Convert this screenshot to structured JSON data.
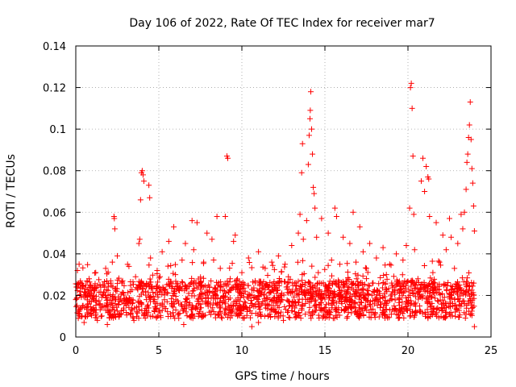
{
  "chart_data": {
    "type": "scatter",
    "title": "Day 106 of 2022, Rate Of TEC Index for receiver mar7",
    "xlabel": "GPS time / hours",
    "ylabel": "ROTI / TECUs",
    "xlim": [
      0,
      25
    ],
    "ylim": [
      0,
      0.14
    ],
    "xticks": [
      0,
      5,
      10,
      15,
      20,
      25
    ],
    "xtick_labels": [
      "0",
      "5",
      "10",
      "15",
      "20",
      "25"
    ],
    "yticks": [
      0,
      0.02,
      0.04,
      0.06,
      0.08,
      0.1,
      0.12,
      0.14
    ],
    "ytick_labels": [
      "0",
      "0.02",
      "0.04",
      "0.06",
      "0.08",
      "0.1",
      "0.12",
      "0.14"
    ],
    "grid": true,
    "marker": "+",
    "color": "#ff0000",
    "series": [
      {
        "name": "ROTI",
        "points": [
          [
            0.0,
            0.018
          ],
          [
            0.1,
            0.032
          ],
          [
            0.15,
            0.009
          ],
          [
            0.2,
            0.035
          ],
          [
            0.3,
            0.014
          ],
          [
            0.4,
            0.025
          ],
          [
            0.5,
            0.007
          ],
          [
            0.6,
            0.021
          ],
          [
            0.8,
            0.028
          ],
          [
            0.9,
            0.011
          ],
          [
            1.0,
            0.019
          ],
          [
            1.2,
            0.031
          ],
          [
            1.3,
            0.008
          ],
          [
            1.5,
            0.024
          ],
          [
            1.6,
            0.015
          ],
          [
            1.8,
            0.033
          ],
          [
            2.0,
            0.012
          ],
          [
            2.1,
            0.027
          ],
          [
            2.2,
            0.036
          ],
          [
            2.3,
            0.058
          ],
          [
            2.32,
            0.057
          ],
          [
            2.35,
            0.052
          ],
          [
            2.4,
            0.018
          ],
          [
            2.5,
            0.039
          ],
          [
            2.6,
            0.01
          ],
          [
            2.8,
            0.026
          ],
          [
            3.0,
            0.016
          ],
          [
            3.2,
            0.034
          ],
          [
            3.4,
            0.013
          ],
          [
            3.6,
            0.029
          ],
          [
            3.8,
            0.045
          ],
          [
            3.85,
            0.047
          ],
          [
            3.9,
            0.066
          ],
          [
            3.95,
            0.079
          ],
          [
            4.0,
            0.08
          ],
          [
            4.05,
            0.078
          ],
          [
            4.1,
            0.075
          ],
          [
            4.2,
            0.022
          ],
          [
            4.4,
            0.073
          ],
          [
            4.45,
            0.067
          ],
          [
            4.5,
            0.038
          ],
          [
            4.7,
            0.017
          ],
          [
            4.9,
            0.032
          ],
          [
            5.0,
            0.012
          ],
          [
            5.2,
            0.041
          ],
          [
            5.4,
            0.023
          ],
          [
            5.6,
            0.046
          ],
          [
            5.8,
            0.015
          ],
          [
            5.9,
            0.053
          ],
          [
            6.0,
            0.03
          ],
          [
            6.2,
            0.009
          ],
          [
            6.4,
            0.037
          ],
          [
            6.6,
            0.045
          ],
          [
            6.8,
            0.021
          ],
          [
            7.0,
            0.056
          ],
          [
            7.1,
            0.042
          ],
          [
            7.3,
            0.055
          ],
          [
            7.5,
            0.014
          ],
          [
            7.7,
            0.036
          ],
          [
            7.9,
            0.05
          ],
          [
            8.0,
            0.025
          ],
          [
            8.2,
            0.047
          ],
          [
            8.4,
            0.011
          ],
          [
            8.5,
            0.058
          ],
          [
            8.7,
            0.033
          ],
          [
            8.9,
            0.019
          ],
          [
            9.0,
            0.058
          ],
          [
            9.1,
            0.087
          ],
          [
            9.15,
            0.086
          ],
          [
            9.3,
            0.028
          ],
          [
            9.5,
            0.046
          ],
          [
            9.6,
            0.049
          ],
          [
            9.8,
            0.013
          ],
          [
            10.0,
            0.031
          ],
          [
            10.2,
            0.022
          ],
          [
            10.4,
            0.038
          ],
          [
            10.6,
            0.005
          ],
          [
            10.8,
            0.027
          ],
          [
            11.0,
            0.041
          ],
          [
            11.2,
            0.016
          ],
          [
            11.4,
            0.033
          ],
          [
            11.6,
            0.024
          ],
          [
            11.8,
            0.036
          ],
          [
            12.0,
            0.012
          ],
          [
            12.2,
            0.039
          ],
          [
            12.4,
            0.02
          ],
          [
            12.6,
            0.035
          ],
          [
            12.8,
            0.029
          ],
          [
            13.0,
            0.044
          ],
          [
            13.2,
            0.017
          ],
          [
            13.4,
            0.05
          ],
          [
            13.5,
            0.059
          ],
          [
            13.6,
            0.079
          ],
          [
            13.65,
            0.093
          ],
          [
            13.7,
            0.047
          ],
          [
            13.8,
            0.025
          ],
          [
            13.9,
            0.056
          ],
          [
            14.0,
            0.083
          ],
          [
            14.05,
            0.097
          ],
          [
            14.1,
            0.105
          ],
          [
            14.12,
            0.109
          ],
          [
            14.15,
            0.118
          ],
          [
            14.2,
            0.1
          ],
          [
            14.25,
            0.088
          ],
          [
            14.3,
            0.072
          ],
          [
            14.35,
            0.069
          ],
          [
            14.4,
            0.062
          ],
          [
            14.5,
            0.048
          ],
          [
            14.6,
            0.031
          ],
          [
            14.8,
            0.057
          ],
          [
            15.0,
            0.022
          ],
          [
            15.2,
            0.05
          ],
          [
            15.4,
            0.037
          ],
          [
            15.6,
            0.062
          ],
          [
            15.7,
            0.058
          ],
          [
            15.9,
            0.035
          ],
          [
            16.1,
            0.048
          ],
          [
            16.3,
            0.019
          ],
          [
            16.5,
            0.045
          ],
          [
            16.7,
            0.06
          ],
          [
            16.9,
            0.028
          ],
          [
            17.1,
            0.053
          ],
          [
            17.3,
            0.041
          ],
          [
            17.5,
            0.033
          ],
          [
            17.7,
            0.045
          ],
          [
            17.9,
            0.026
          ],
          [
            18.1,
            0.038
          ],
          [
            18.3,
            0.021
          ],
          [
            18.5,
            0.043
          ],
          [
            18.7,
            0.03
          ],
          [
            18.9,
            0.035
          ],
          [
            19.1,
            0.024
          ],
          [
            19.3,
            0.04
          ],
          [
            19.5,
            0.018
          ],
          [
            19.7,
            0.037
          ],
          [
            19.9,
            0.044
          ],
          [
            20.1,
            0.062
          ],
          [
            20.15,
            0.12
          ],
          [
            20.2,
            0.122
          ],
          [
            20.25,
            0.11
          ],
          [
            20.3,
            0.087
          ],
          [
            20.35,
            0.059
          ],
          [
            20.4,
            0.042
          ],
          [
            20.6,
            0.028
          ],
          [
            20.8,
            0.075
          ],
          [
            20.9,
            0.086
          ],
          [
            21.0,
            0.07
          ],
          [
            21.1,
            0.082
          ],
          [
            21.2,
            0.077
          ],
          [
            21.25,
            0.076
          ],
          [
            21.3,
            0.058
          ],
          [
            21.5,
            0.031
          ],
          [
            21.7,
            0.055
          ],
          [
            21.9,
            0.036
          ],
          [
            22.1,
            0.049
          ],
          [
            22.3,
            0.042
          ],
          [
            22.5,
            0.057
          ],
          [
            22.6,
            0.048
          ],
          [
            22.8,
            0.033
          ],
          [
            23.0,
            0.045
          ],
          [
            23.2,
            0.059
          ],
          [
            23.3,
            0.052
          ],
          [
            23.4,
            0.06
          ],
          [
            23.5,
            0.071
          ],
          [
            23.55,
            0.084
          ],
          [
            23.6,
            0.088
          ],
          [
            23.65,
            0.096
          ],
          [
            23.7,
            0.102
          ],
          [
            23.75,
            0.113
          ],
          [
            23.8,
            0.095
          ],
          [
            23.85,
            0.081
          ],
          [
            23.9,
            0.074
          ],
          [
            23.95,
            0.063
          ],
          [
            24.0,
            0.051
          ],
          [
            23.1,
            0.017
          ],
          [
            22.2,
            0.014
          ],
          [
            21.4,
            0.012
          ],
          [
            19.0,
            0.011
          ],
          [
            17.0,
            0.01
          ],
          [
            15.5,
            0.009
          ],
          [
            12.5,
            0.008
          ],
          [
            11.0,
            0.007
          ],
          [
            8.8,
            0.009
          ],
          [
            6.5,
            0.006
          ],
          [
            3.5,
            0.008
          ],
          [
            1.9,
            0.006
          ],
          [
            0.7,
            0.01
          ],
          [
            24.0,
            0.005
          ]
        ]
      }
    ]
  }
}
